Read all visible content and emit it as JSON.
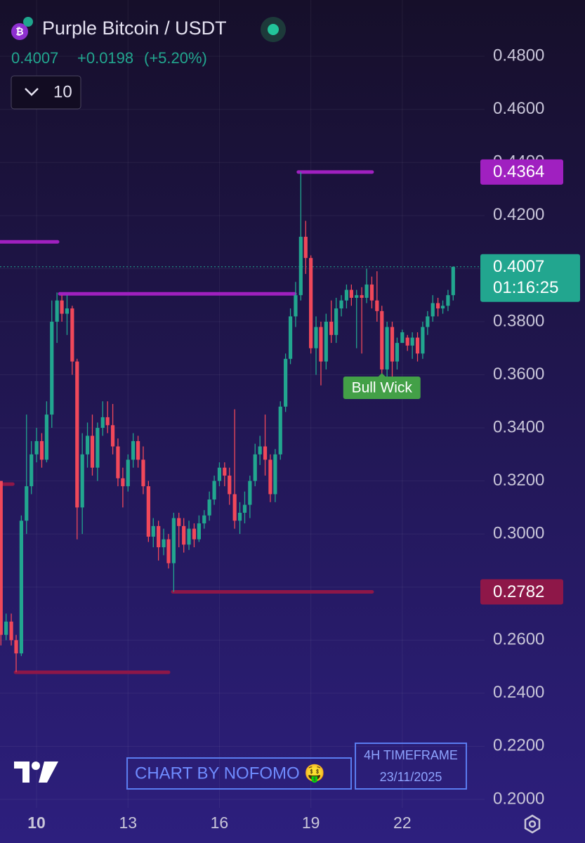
{
  "chart_data": {
    "type": "candlestick",
    "title": "Purple Bitcoin / USDT",
    "last_price": 0.4007,
    "change": "+0.0198",
    "change_pct": "(+5.20%)",
    "countdown": "01:16:25",
    "interval_selector": "10",
    "x": [
      8.83,
      9,
      9.17,
      9.33,
      9.5,
      9.67,
      9.83,
      10,
      10.17,
      10.33,
      10.5,
      10.67,
      10.83,
      11,
      11.17,
      11.33,
      11.5,
      11.67,
      11.83,
      12,
      12.17,
      12.33,
      12.5,
      12.67,
      12.83,
      13,
      13.17,
      13.33,
      13.5,
      13.67,
      13.83,
      14,
      14.17,
      14.33,
      14.5,
      14.67,
      14.83,
      15,
      15.17,
      15.33,
      15.5,
      15.67,
      15.83,
      16,
      16.17,
      16.33,
      16.5,
      16.67,
      16.83,
      17,
      17.17,
      17.33,
      17.5,
      17.67,
      17.83,
      18,
      18.17,
      18.33,
      18.5,
      18.67,
      18.83,
      19,
      19.17,
      19.33,
      19.5,
      19.67,
      19.83,
      20,
      20.17,
      20.33,
      20.5,
      20.67,
      20.83,
      21,
      21.17,
      21.33,
      21.5,
      21.67,
      21.83,
      22,
      22.17,
      22.33,
      22.5,
      22.67,
      22.83,
      23,
      23.17,
      23.33,
      23.5,
      23.67
    ],
    "open": [
      0.32,
      0.262,
      0.267,
      0.26,
      0.255,
      0.305,
      0.318,
      0.33,
      0.335,
      0.328,
      0.345,
      0.38,
      0.388,
      0.383,
      0.385,
      0.365,
      0.31,
      0.33,
      0.337,
      0.325,
      0.34,
      0.344,
      0.341,
      0.333,
      0.321,
      0.318,
      0.328,
      0.335,
      0.328,
      0.318,
      0.299,
      0.303,
      0.295,
      0.298,
      0.289,
      0.306,
      0.303,
      0.296,
      0.302,
      0.298,
      0.304,
      0.307,
      0.313,
      0.32,
      0.325,
      0.322,
      0.315,
      0.305,
      0.308,
      0.311,
      0.32,
      0.33,
      0.333,
      0.328,
      0.315,
      0.33,
      0.348,
      0.366,
      0.382,
      0.39,
      0.412,
      0.404,
      0.37,
      0.378,
      0.365,
      0.38,
      0.375,
      0.385,
      0.388,
      0.392,
      0.389,
      0.39,
      0.389,
      0.394,
      0.388,
      0.384,
      0.362,
      0.378,
      0.365,
      0.372,
      0.374,
      0.371,
      0.374,
      0.368,
      0.378,
      0.382,
      0.387,
      0.385,
      0.386,
      0.39
    ],
    "high": [
      0.32,
      0.27,
      0.27,
      0.262,
      0.307,
      0.345,
      0.335,
      0.34,
      0.338,
      0.35,
      0.388,
      0.391,
      0.39,
      0.39,
      0.386,
      0.366,
      0.338,
      0.342,
      0.345,
      0.342,
      0.35,
      0.35,
      0.349,
      0.336,
      0.325,
      0.33,
      0.338,
      0.337,
      0.333,
      0.32,
      0.306,
      0.305,
      0.302,
      0.3,
      0.308,
      0.308,
      0.306,
      0.305,
      0.304,
      0.307,
      0.309,
      0.316,
      0.322,
      0.327,
      0.327,
      0.325,
      0.347,
      0.312,
      0.316,
      0.322,
      0.334,
      0.337,
      0.345,
      0.33,
      0.332,
      0.35,
      0.368,
      0.385,
      0.395,
      0.4364,
      0.418,
      0.405,
      0.382,
      0.38,
      0.383,
      0.388,
      0.389,
      0.39,
      0.394,
      0.394,
      0.392,
      0.393,
      0.4,
      0.397,
      0.399,
      0.386,
      0.38,
      0.38,
      0.374,
      0.377,
      0.375,
      0.376,
      0.376,
      0.38,
      0.384,
      0.39,
      0.389,
      0.388,
      0.392,
      0.4007
    ],
    "low": [
      0.258,
      0.26,
      0.258,
      0.248,
      0.254,
      0.3,
      0.315,
      0.327,
      0.325,
      0.327,
      0.34,
      0.372,
      0.38,
      0.375,
      0.36,
      0.298,
      0.3,
      0.325,
      0.322,
      0.32,
      0.337,
      0.338,
      0.33,
      0.318,
      0.31,
      0.316,
      0.325,
      0.325,
      0.315,
      0.297,
      0.295,
      0.29,
      0.292,
      0.287,
      0.2782,
      0.295,
      0.293,
      0.294,
      0.295,
      0.297,
      0.302,
      0.305,
      0.311,
      0.318,
      0.318,
      0.311,
      0.302,
      0.3,
      0.304,
      0.306,
      0.318,
      0.326,
      0.322,
      0.312,
      0.312,
      0.328,
      0.346,
      0.364,
      0.378,
      0.388,
      0.398,
      0.368,
      0.36,
      0.356,
      0.362,
      0.372,
      0.372,
      0.382,
      0.385,
      0.386,
      0.37,
      0.368,
      0.387,
      0.385,
      0.38,
      0.36,
      0.357,
      0.356,
      0.362,
      0.374,
      0.369,
      0.366,
      0.365,
      0.366,
      0.375,
      0.38,
      0.382,
      0.383,
      0.384,
      0.388
    ],
    "close": [
      0.262,
      0.267,
      0.26,
      0.255,
      0.305,
      0.318,
      0.33,
      0.335,
      0.328,
      0.345,
      0.38,
      0.388,
      0.383,
      0.385,
      0.365,
      0.31,
      0.33,
      0.337,
      0.325,
      0.34,
      0.344,
      0.341,
      0.333,
      0.321,
      0.318,
      0.328,
      0.335,
      0.328,
      0.318,
      0.299,
      0.303,
      0.295,
      0.298,
      0.289,
      0.306,
      0.303,
      0.296,
      0.302,
      0.298,
      0.304,
      0.307,
      0.313,
      0.32,
      0.325,
      0.322,
      0.315,
      0.305,
      0.308,
      0.311,
      0.32,
      0.33,
      0.333,
      0.328,
      0.315,
      0.33,
      0.348,
      0.366,
      0.382,
      0.39,
      0.412,
      0.404,
      0.37,
      0.378,
      0.365,
      0.38,
      0.375,
      0.385,
      0.388,
      0.392,
      0.389,
      0.39,
      0.389,
      0.394,
      0.388,
      0.384,
      0.362,
      0.378,
      0.365,
      0.372,
      0.376,
      0.371,
      0.374,
      0.368,
      0.378,
      0.382,
      0.387,
      0.385,
      0.386,
      0.39,
      0.4007
    ],
    "up_color": "#22a68f",
    "down_color": "#f0485a",
    "xlim": [
      8.8,
      24.7
    ],
    "xticks": [
      10,
      13,
      16,
      19,
      22
    ],
    "ylim": [
      0.1968,
      0.4991
    ],
    "yticks": [
      {
        "value": 0.2,
        "label": "0.2000"
      },
      {
        "value": 0.22,
        "label": "0.2200"
      },
      {
        "value": 0.24,
        "label": "0.2400"
      },
      {
        "value": 0.26,
        "label": "0.2600"
      },
      {
        "value": 0.28,
        "label": "0.2800"
      },
      {
        "value": 0.3,
        "label": "0.3000"
      },
      {
        "value": 0.32,
        "label": "0.3200"
      },
      {
        "value": 0.34,
        "label": "0.3400"
      },
      {
        "value": 0.36,
        "label": "0.3600"
      },
      {
        "value": 0.38,
        "label": "0.3800"
      },
      {
        "value": 0.4,
        "label": "0.4000"
      },
      {
        "value": 0.42,
        "label": "0.4200"
      },
      {
        "value": 0.44,
        "label": "0.4400"
      },
      {
        "value": 0.46,
        "label": "0.4600"
      },
      {
        "value": 0.48,
        "label": "0.4800"
      }
    ],
    "grid": true,
    "levels": [
      {
        "value": 0.4364,
        "start": 18.59,
        "end": 21.01,
        "color": "#a020c0"
      },
      {
        "value": 0.3905,
        "start": 10.76,
        "end": 18.48,
        "color": "#a020c0"
      },
      {
        "value": 0.4101,
        "start": 8.8,
        "end": 10.69,
        "color": "#a020c0"
      },
      {
        "value": 0.2782,
        "start": 14.47,
        "end": 21.01,
        "color": "#8e1748"
      },
      {
        "value": 0.2479,
        "start": 9.31,
        "end": 14.33,
        "color": "#8e1748"
      },
      {
        "value": 0.3188,
        "start": 8.8,
        "end": 9.22,
        "color": "#8e1748"
      }
    ],
    "annotations": [
      {
        "text": "Bull Wick",
        "x": 21.33,
        "y": 0.3625
      }
    ],
    "watermark": "CHART BY NOFOMO 🤑",
    "timeframe": "4H TIMEFRAME",
    "date": "23/11/2025"
  }
}
